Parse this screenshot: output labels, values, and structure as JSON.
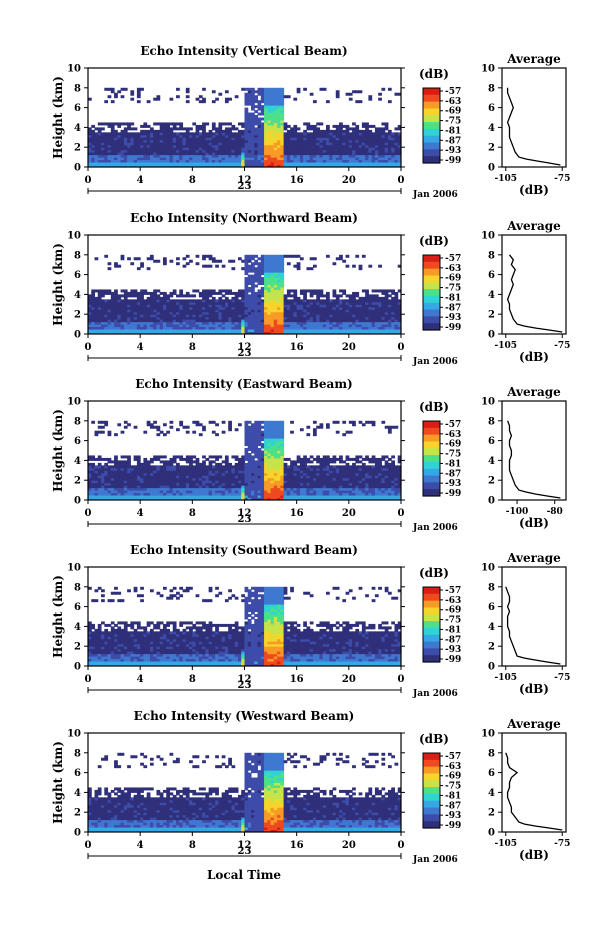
{
  "figure": {
    "x_axis_label": "Local Time",
    "x_ticks": [
      "0",
      "4",
      "8",
      "12",
      "16",
      "20",
      "0"
    ],
    "day_label": "23",
    "date_label": "Jan 2006",
    "y_axis_label": "Height (km)",
    "y_ticks": [
      "0",
      "2",
      "4",
      "6",
      "8",
      "10"
    ],
    "colorbar_unit": "(dB)",
    "colorbar_ticks": [
      "-57",
      "-63",
      "-69",
      "-75",
      "-81",
      "-87",
      "-93",
      "-99"
    ],
    "profile_title": "Average",
    "profile_unit": "(dB)"
  },
  "colors": {
    "colormap": [
      "#2f2f7a",
      "#3d4ca8",
      "#3f78d0",
      "#35a8e6",
      "#30d3d4",
      "#4de08a",
      "#c6e34a",
      "#f6d42c",
      "#f79a26",
      "#ef4a1f",
      "#d81e15"
    ]
  },
  "chart_data": [
    {
      "type": "heatmap",
      "title": "Echo Intensity (Vertical Beam)",
      "xlabel": "",
      "ylabel": "Height (km)",
      "xlim": [
        0,
        24
      ],
      "ylim": [
        0,
        10
      ],
      "colorbar": {
        "unit": "(dB)",
        "range": [
          -99,
          -57
        ]
      },
      "notes": "weak echoes (-99..-90 dB) fill 0-4 km all day; strong convective column -60..-57 dB near 13.5-15 h up to ~6 km; thin spike at ~11.8 h",
      "profile": {
        "title": "Average",
        "xlabel": "(dB)",
        "xticks": [
          "-105",
          "-75"
        ],
        "xlim": [
          -107,
          -73
        ],
        "height_km": [
          0.2,
          0.4,
          0.6,
          0.8,
          1.0,
          1.5,
          2.0,
          2.5,
          3.0,
          3.5,
          4.0,
          4.5,
          5.0,
          5.5,
          6.0,
          6.5,
          7.0,
          7.5,
          8.0
        ],
        "db": [
          -76,
          -82,
          -88,
          -94,
          -98,
          -100,
          -101,
          -102,
          -103,
          -103,
          -103,
          -104,
          -103,
          -102,
          -101,
          -102,
          -103,
          -104,
          -104
        ]
      }
    },
    {
      "type": "heatmap",
      "title": "Echo Intensity (Northward Beam)",
      "xlabel": "",
      "ylabel": "Height (km)",
      "xlim": [
        0,
        24
      ],
      "ylim": [
        0,
        10
      ],
      "colorbar": {
        "unit": "(dB)",
        "range": [
          -99,
          -57
        ]
      },
      "notes": "weak echoes fill 0-5 km; strong column near 13.5-15 h",
      "profile": {
        "title": "Average",
        "xlabel": "(dB)",
        "xticks": [
          "-105",
          "-75"
        ],
        "xlim": [
          -107,
          -73
        ],
        "height_km": [
          0.2,
          0.4,
          0.6,
          0.8,
          1.0,
          1.5,
          2.0,
          2.5,
          3.0,
          3.5,
          4.0,
          4.5,
          5.0,
          5.5,
          6.0,
          6.5,
          7.0,
          7.5,
          8.0
        ],
        "db": [
          -75,
          -82,
          -89,
          -95,
          -99,
          -101,
          -102,
          -103,
          -103,
          -104,
          -103,
          -102,
          -101,
          -102,
          -101,
          -100,
          -102,
          -101,
          -103
        ]
      }
    },
    {
      "type": "heatmap",
      "title": "Echo Intensity (Eastward Beam)",
      "xlabel": "",
      "ylabel": "Height (km)",
      "xlim": [
        0,
        24
      ],
      "ylim": [
        0,
        10
      ],
      "colorbar": {
        "unit": "(dB)",
        "range": [
          -99,
          -57
        ]
      },
      "notes": "weak echoes fill 0-4.5 km; strong column near 13.5-15 h",
      "profile": {
        "title": "Average",
        "xlabel": "(dB)",
        "xticks": [
          "-100",
          "-80"
        ],
        "xlim": [
          -108,
          -74
        ],
        "height_km": [
          0.2,
          0.4,
          0.6,
          0.8,
          1.0,
          1.5,
          2.0,
          2.5,
          3.0,
          3.5,
          4.0,
          4.5,
          5.0,
          5.5,
          6.0,
          6.5,
          7.0,
          7.5,
          8.0
        ],
        "db": [
          -77,
          -84,
          -90,
          -95,
          -99,
          -101,
          -102,
          -103,
          -104,
          -104,
          -104,
          -103,
          -103,
          -104,
          -104,
          -103,
          -104,
          -104,
          -105
        ]
      }
    },
    {
      "type": "heatmap",
      "title": "Echo Intensity (Southward Beam)",
      "xlabel": "",
      "ylabel": "Height (km)",
      "xlim": [
        0,
        24
      ],
      "ylim": [
        0,
        10
      ],
      "colorbar": {
        "unit": "(dB)",
        "range": [
          -99,
          -57
        ]
      },
      "notes": "weak echoes fill 0-5 km; strong column near 13.5-15 h",
      "profile": {
        "title": "Average",
        "xlabel": "(dB)",
        "xticks": [
          "-105",
          "-75"
        ],
        "xlim": [
          -107,
          -73
        ],
        "height_km": [
          0.2,
          0.4,
          0.6,
          0.8,
          1.0,
          1.5,
          2.0,
          2.5,
          3.0,
          3.5,
          4.0,
          4.5,
          5.0,
          5.5,
          6.0,
          6.5,
          7.0,
          7.5,
          8.0
        ],
        "db": [
          -76,
          -83,
          -89,
          -95,
          -99,
          -100,
          -101,
          -102,
          -103,
          -103,
          -104,
          -104,
          -104,
          -103,
          -104,
          -103,
          -103,
          -104,
          -105
        ]
      }
    },
    {
      "type": "heatmap",
      "title": "Echo Intensity (Westward Beam)",
      "xlabel": "Local Time",
      "ylabel": "Height (km)",
      "xlim": [
        0,
        24
      ],
      "ylim": [
        0,
        10
      ],
      "colorbar": {
        "unit": "(dB)",
        "range": [
          -99,
          -57
        ]
      },
      "notes": "weak echoes fill 0-4.5 km; strong column near 13.5-15 h",
      "profile": {
        "title": "Average",
        "xlabel": "(dB)",
        "xticks": [
          "-105",
          "-75"
        ],
        "xlim": [
          -107,
          -73
        ],
        "height_km": [
          0.2,
          0.4,
          0.6,
          0.8,
          1.0,
          1.5,
          2.0,
          2.5,
          3.0,
          3.5,
          4.0,
          4.5,
          5.0,
          5.5,
          6.0,
          6.5,
          7.0,
          7.5,
          8.0
        ],
        "db": [
          -75,
          -82,
          -89,
          -95,
          -98,
          -100,
          -102,
          -102,
          -103,
          -104,
          -104,
          -103,
          -103,
          -102,
          -99,
          -103,
          -104,
          -104,
          -105
        ]
      }
    }
  ]
}
